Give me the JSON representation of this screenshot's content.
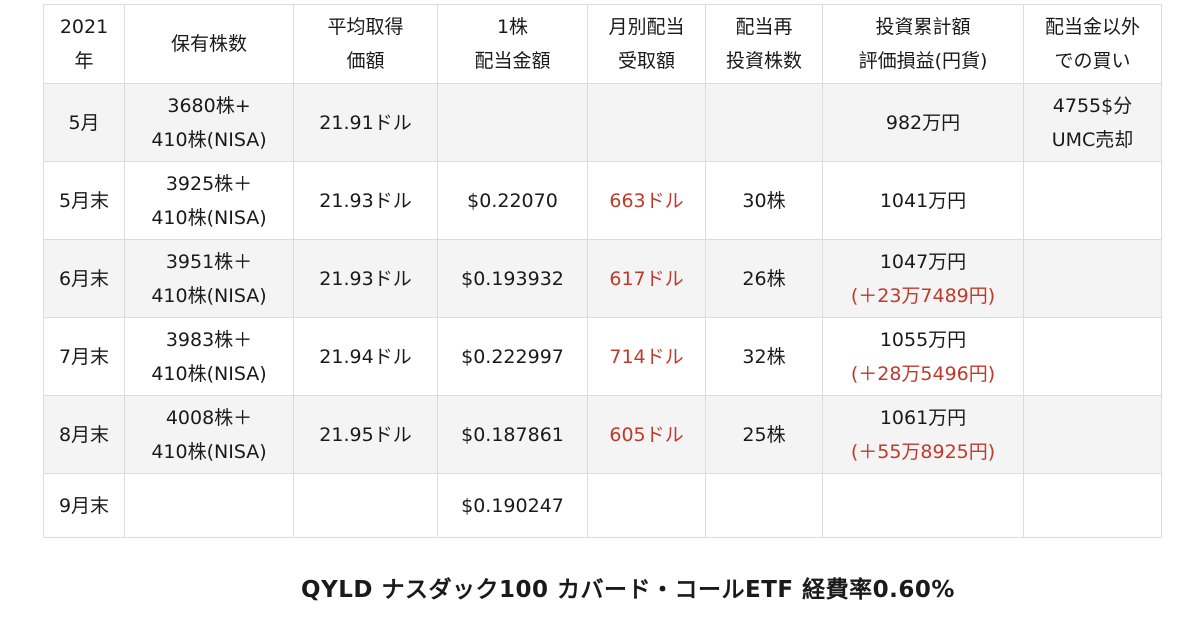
{
  "headers": [
    [
      "2021",
      "年"
    ],
    [
      "保有株数"
    ],
    [
      "平均取得",
      "価額"
    ],
    [
      "1株",
      "配当金額"
    ],
    [
      "月別配当",
      "受取額"
    ],
    [
      "配当再",
      "投資株数"
    ],
    [
      "投資累計額",
      "評価損益(円貨)"
    ],
    [
      "配当金以外",
      "での買い"
    ]
  ],
  "rows": [
    {
      "month": "5月",
      "shares": [
        "3680株+",
        "410株(NISA)"
      ],
      "avg_price": "21.91ドル",
      "div_per_share": "",
      "monthly_div": "",
      "reinvest_shares": "",
      "cumulative": "982万円",
      "gain": "",
      "other_buy": [
        "4755$分",
        "UMC売却"
      ]
    },
    {
      "month": "5月末",
      "shares": [
        "3925株＋",
        "410株(NISA)"
      ],
      "avg_price": "21.93ドル",
      "div_per_share": "$0.22070",
      "monthly_div": "663ドル",
      "reinvest_shares": "30株",
      "cumulative": "1041万円",
      "gain": "",
      "other_buy": [
        "",
        ""
      ]
    },
    {
      "month": "6月末",
      "shares": [
        "3951株＋",
        "410株(NISA)"
      ],
      "avg_price": "21.93ドル",
      "div_per_share": "$0.193932",
      "monthly_div": "617ドル",
      "reinvest_shares": "26株",
      "cumulative": "1047万円",
      "gain": "(＋23万7489円)",
      "other_buy": [
        "",
        ""
      ]
    },
    {
      "month": "7月末",
      "shares": [
        "3983株＋",
        "410株(NISA)"
      ],
      "avg_price": "21.94ドル",
      "div_per_share": "$0.222997",
      "monthly_div": "714ドル",
      "reinvest_shares": "32株",
      "cumulative": "1055万円",
      "gain": "(＋28万5496円)",
      "other_buy": [
        "",
        ""
      ]
    },
    {
      "month": "8月末",
      "shares": [
        "4008株＋",
        "410株(NISA)"
      ],
      "avg_price": "21.95ドル",
      "div_per_share": "$0.187861",
      "monthly_div": "605ドル",
      "reinvest_shares": "25株",
      "cumulative": "1061万円",
      "gain": "(＋55万8925円)",
      "other_buy": [
        "",
        ""
      ]
    },
    {
      "month": "9月末",
      "shares": [
        "",
        ""
      ],
      "avg_price": "",
      "div_per_share": "$0.190247",
      "monthly_div": "",
      "reinvest_shares": "",
      "cumulative": "",
      "gain": "",
      "other_buy": [
        "",
        ""
      ]
    }
  ],
  "caption": "QYLD ナスダック100 カバード・コールETF  経費率0.60%",
  "colors": {
    "accent_red": "#c0392b",
    "row_shade": "#f4f4f4",
    "border": "#dcdcdc"
  }
}
